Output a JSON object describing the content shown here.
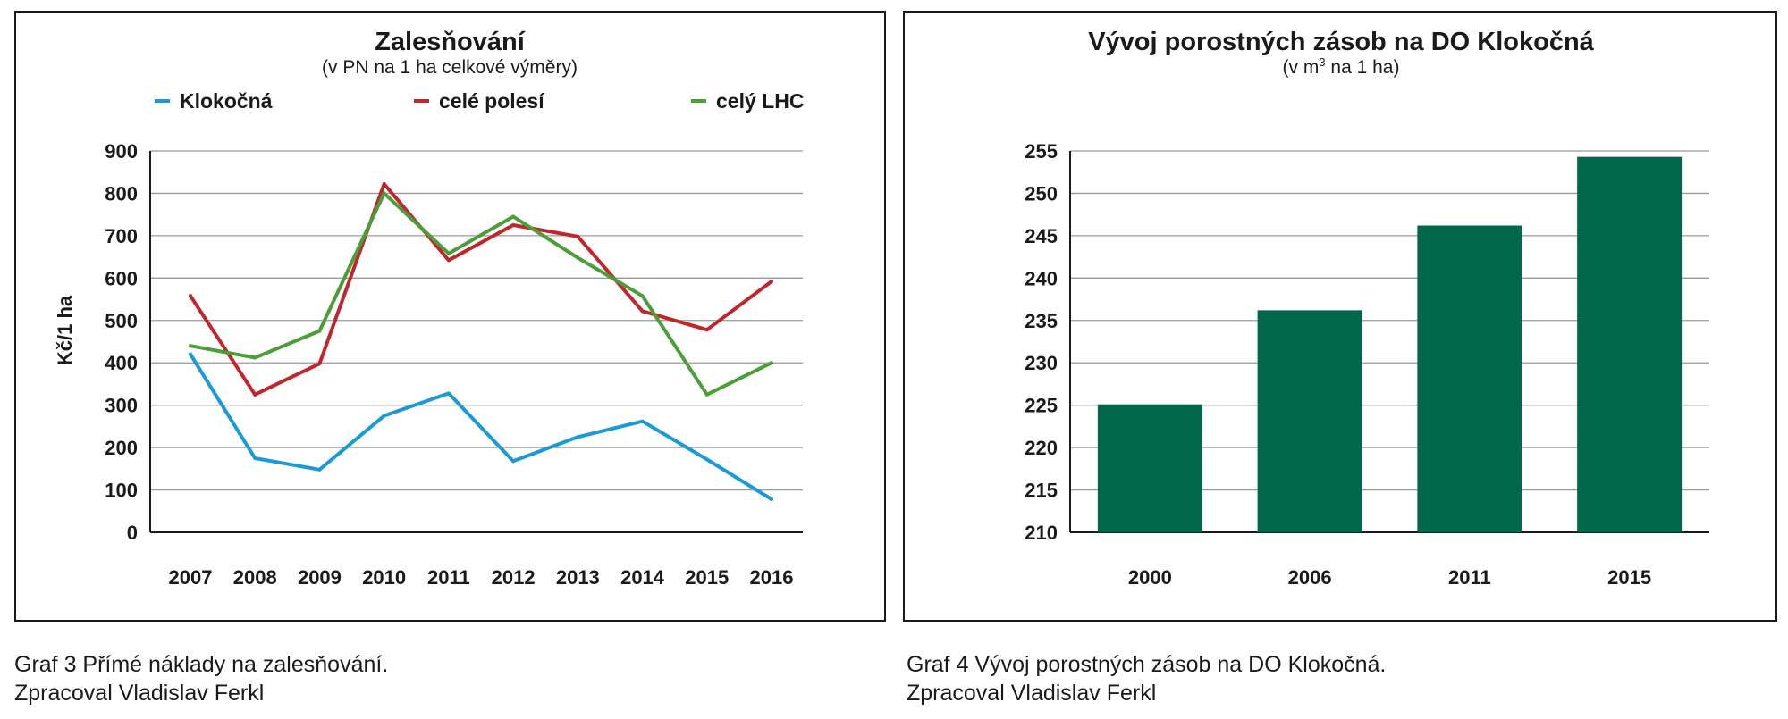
{
  "charts": [
    {
      "title": "Zalesňování",
      "subtitle": "(v PN na 1 ha celkové výměry)",
      "caption": [
        "Graf 3 Přímé náklady na zalesňování.",
        "Zpracoval Vladislav Ferkl"
      ]
    },
    {
      "title": "Vývoj porostných zásob na DO Klokočná",
      "subtitle_prefix": "(v m",
      "subtitle_sup": "3",
      "subtitle_suffix": " na 1 ha)",
      "caption": [
        "Graf 4 Vývoj porostných zásob na DO Klokočná.",
        "Zpracoval Vladislav Ferkl"
      ]
    }
  ],
  "chart_data": [
    {
      "type": "line",
      "title": "Zalesňování",
      "subtitle": "(v PN na 1 ha celkové výměry)",
      "xlabel": "",
      "ylabel": "Kč/1 ha",
      "x": [
        "2007",
        "2008",
        "2009",
        "2010",
        "2011",
        "2012",
        "2013",
        "2014",
        "2015",
        "2016"
      ],
      "yticks": [
        "0",
        "100",
        "200",
        "300",
        "400",
        "500",
        "600",
        "700",
        "800",
        "900"
      ],
      "ylim": [
        0,
        900
      ],
      "grid": true,
      "legend": "top",
      "series": [
        {
          "name": "Klokočná",
          "color": "#1a9bd7",
          "values": [
            420,
            175,
            148,
            275,
            328,
            168,
            225,
            262,
            172,
            78
          ]
        },
        {
          "name": "celé polesí",
          "color": "#c0272d",
          "values": [
            558,
            325,
            398,
            822,
            642,
            725,
            698,
            522,
            478,
            592
          ]
        },
        {
          "name": "celý LHC",
          "color": "#4c9f38",
          "values": [
            440,
            412,
            475,
            800,
            658,
            745,
            648,
            558,
            325,
            400
          ]
        }
      ]
    },
    {
      "type": "bar",
      "title": "Vývoj porostných zásob na DO Klokočná",
      "subtitle": "(v m3 na 1 ha)",
      "xlabel": "",
      "ylabel": "",
      "categories": [
        "2000",
        "2006",
        "2011",
        "2015"
      ],
      "values": [
        225.1,
        236.2,
        246.2,
        254.3
      ],
      "yticks": [
        "210",
        "215",
        "220",
        "225",
        "230",
        "235",
        "240",
        "245",
        "250",
        "255"
      ],
      "ylim": [
        210,
        255
      ],
      "grid": true,
      "color": "#00674a"
    }
  ]
}
